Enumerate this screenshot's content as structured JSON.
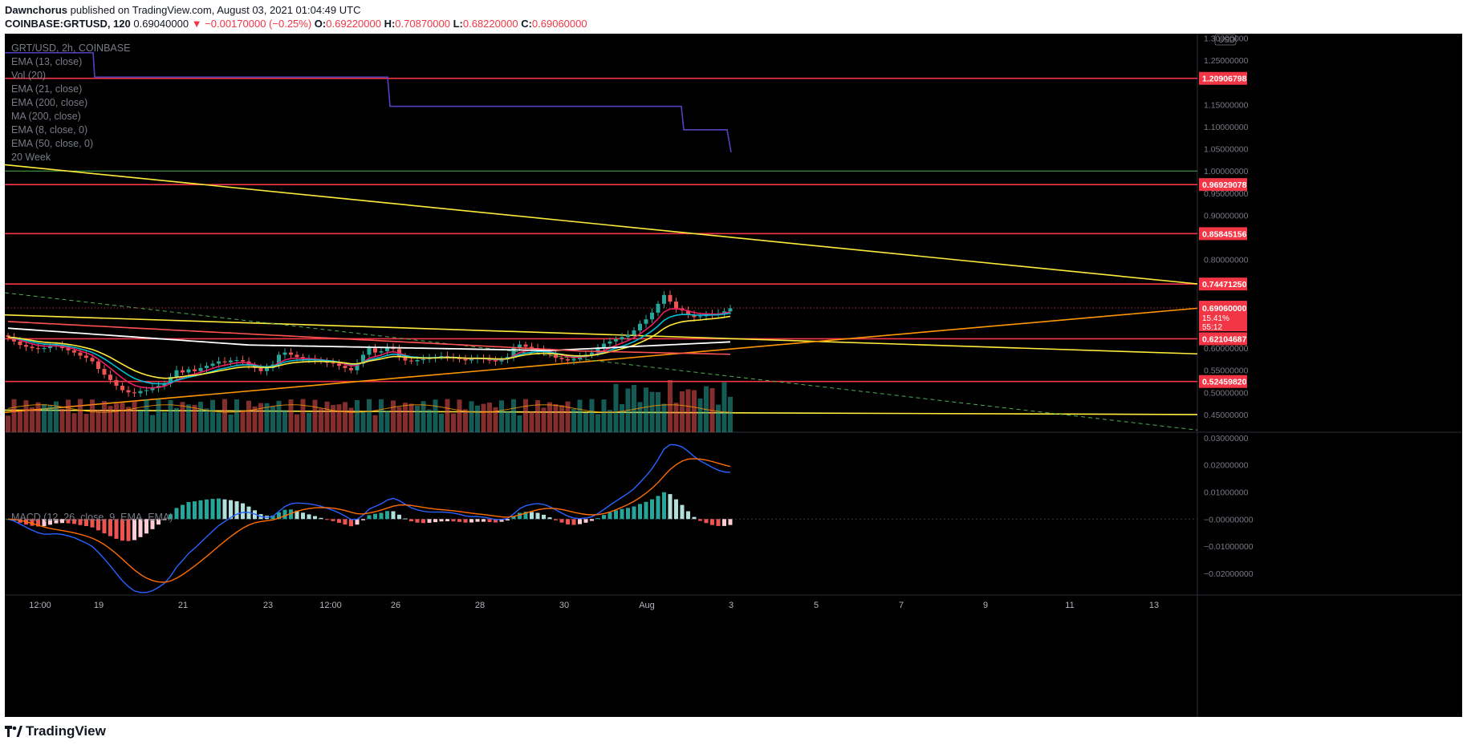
{
  "header": {
    "author": "Dawnchorus",
    "published_text": "published on TradingView.com, August 03, 2021 01:04:49 UTC",
    "symbol": "COINBASE:GRTUSD, 120",
    "last": "0.69040000",
    "change": "▼ −0.00170000 (−0.25%)",
    "o_label": "O:",
    "o_value": "0.69220000",
    "h_label": "H:",
    "h_value": "0.70870000",
    "l_label": "L:",
    "l_value": "0.68220000",
    "c_label": "C:",
    "c_value": "0.69060000"
  },
  "legend": {
    "title": "GRT/USD, 2h, COINBASE",
    "items": [
      "EMA (13, close)",
      "Vol (20)",
      "EMA (21, close)",
      "EMA (200, close)",
      "MA (200, close)",
      "EMA (8, close, 0)",
      "EMA (50, close, 0)",
      "20 Week"
    ],
    "macd": "MACD (12, 26, close, 9, EMA, EMA)"
  },
  "currency": "USD",
  "footer": {
    "logo": "TradingView"
  },
  "colors": {
    "up": "#26a69a",
    "down": "#ef5350",
    "resistance": "#f23645",
    "trend_yellow": "#ffeb3b",
    "trend_orange": "#ff9800",
    "week_line": "#5b3fbf",
    "macd": "#2962ff",
    "signal": "#ff6d00"
  },
  "chart_data": {
    "type": "candlestick",
    "price_axis": {
      "range": [
        0.41,
        1.31
      ],
      "ticks": [
        "1.30000000",
        "1.25000000",
        "1.15000000",
        "1.10000000",
        "1.05000000",
        "1.00000000",
        "0.95000000",
        "0.90000000",
        "0.80000000",
        "0.60000000",
        "0.55000000",
        "0.50000000",
        "0.45000000"
      ]
    },
    "time_axis": {
      "labels": [
        "12:00",
        "19",
        "21",
        "23",
        "12:00",
        "26",
        "28",
        "30",
        "Aug",
        "3",
        "5",
        "7",
        "9",
        "11",
        "13"
      ]
    },
    "horizontal_levels": [
      {
        "value": 1.20906798,
        "label": "1.20906798"
      },
      {
        "value": 0.96929078,
        "label": "0.96929078"
      },
      {
        "value": 0.85845156,
        "label": "0.85845156"
      },
      {
        "value": 0.7447125,
        "label": "0.74471250"
      },
      {
        "value": 0.62104687,
        "label": "0.62104687"
      },
      {
        "value": 0.5245982,
        "label": "0.52459820"
      }
    ],
    "green_level": 1.0,
    "current_price": {
      "value": 0.6906,
      "label": "0.69060000",
      "pct": "15.41%",
      "countdown": "55:12"
    },
    "weekly_steps": [
      1.267,
      1.267,
      1.212,
      1.212,
      1.146,
      1.146,
      1.093,
      1.093,
      1.042
    ],
    "closes": [
      0.625,
      0.615,
      0.607,
      0.603,
      0.6,
      0.598,
      0.6,
      0.605,
      0.606,
      0.6,
      0.595,
      0.59,
      0.583,
      0.578,
      0.57,
      0.553,
      0.54,
      0.528,
      0.515,
      0.505,
      0.5,
      0.498,
      0.503,
      0.505,
      0.51,
      0.515,
      0.52,
      0.535,
      0.55,
      0.545,
      0.552,
      0.548,
      0.555,
      0.56,
      0.565,
      0.57,
      0.568,
      0.572,
      0.573,
      0.57,
      0.562,
      0.555,
      0.548,
      0.555,
      0.563,
      0.585,
      0.59,
      0.585,
      0.58,
      0.575,
      0.575,
      0.573,
      0.57,
      0.567,
      0.565,
      0.56,
      0.555,
      0.55,
      0.565,
      0.585,
      0.6,
      0.59,
      0.593,
      0.603,
      0.598,
      0.58,
      0.572,
      0.57,
      0.573,
      0.575,
      0.578,
      0.58,
      0.582,
      0.58,
      0.578,
      0.575,
      0.572,
      0.575,
      0.578,
      0.575,
      0.572,
      0.57,
      0.575,
      0.58,
      0.6,
      0.608,
      0.603,
      0.6,
      0.598,
      0.592,
      0.585,
      0.578,
      0.575,
      0.572,
      0.575,
      0.58,
      0.585,
      0.59,
      0.6,
      0.61,
      0.615,
      0.62,
      0.625,
      0.63,
      0.64,
      0.655,
      0.665,
      0.68,
      0.7,
      0.72,
      0.705,
      0.69,
      0.685,
      0.675,
      0.67,
      0.672,
      0.677,
      0.675,
      0.678,
      0.683,
      0.69
    ],
    "macd_axis": {
      "range": [
        -0.028,
        0.032
      ],
      "ticks": [
        "0.03000000",
        "0.02000000",
        "0.01000000",
        "−0.00000000",
        "−0.01000000",
        "−0.02000000"
      ]
    }
  }
}
